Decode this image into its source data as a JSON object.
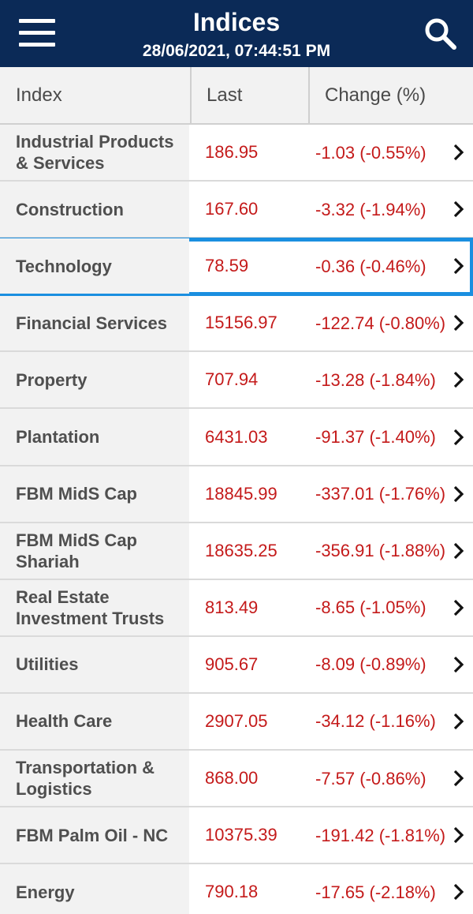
{
  "header": {
    "title": "Indices",
    "timestamp": "28/06/2021, 07:44:51 PM",
    "menu_icon": "hamburger-menu-icon",
    "search_icon": "search-icon",
    "bar_color": "#0b2a57"
  },
  "table": {
    "columns": [
      "Index",
      "Last",
      "Change (%)"
    ],
    "value_color": "#c41a1a",
    "selected_row": "Technology",
    "selected_color": "#1a8fe0",
    "rows": [
      {
        "name": "Industrial Products & Services",
        "last": "186.95",
        "change": "-1.03 (-0.55%)"
      },
      {
        "name": "Construction",
        "last": "167.60",
        "change": "-3.32 (-1.94%)"
      },
      {
        "name": "Technology",
        "last": "78.59",
        "change": "-0.36 (-0.46%)"
      },
      {
        "name": "Financial Services",
        "last": "15156.97",
        "change": "-122.74 (-0.80%)"
      },
      {
        "name": "Property",
        "last": "707.94",
        "change": "-13.28 (-1.84%)"
      },
      {
        "name": "Plantation",
        "last": "6431.03",
        "change": "-91.37 (-1.40%)"
      },
      {
        "name": "FBM MidS Cap",
        "last": "18845.99",
        "change": "-337.01 (-1.76%)"
      },
      {
        "name": "FBM MidS Cap Shariah",
        "last": "18635.25",
        "change": "-356.91 (-1.88%)"
      },
      {
        "name": "Real Estate Investment Trusts",
        "last": "813.49",
        "change": "-8.65 (-1.05%)"
      },
      {
        "name": "Utilities",
        "last": "905.67",
        "change": "-8.09 (-0.89%)"
      },
      {
        "name": "Health Care",
        "last": "2907.05",
        "change": "-34.12 (-1.16%)"
      },
      {
        "name": "Transportation & Logistics",
        "last": "868.00",
        "change": "-7.57 (-0.86%)"
      },
      {
        "name": "FBM Palm Oil - NC",
        "last": "10375.39",
        "change": "-191.42 (-1.81%)"
      },
      {
        "name": "Energy",
        "last": "790.18",
        "change": "-17.65 (-2.18%)"
      }
    ]
  }
}
